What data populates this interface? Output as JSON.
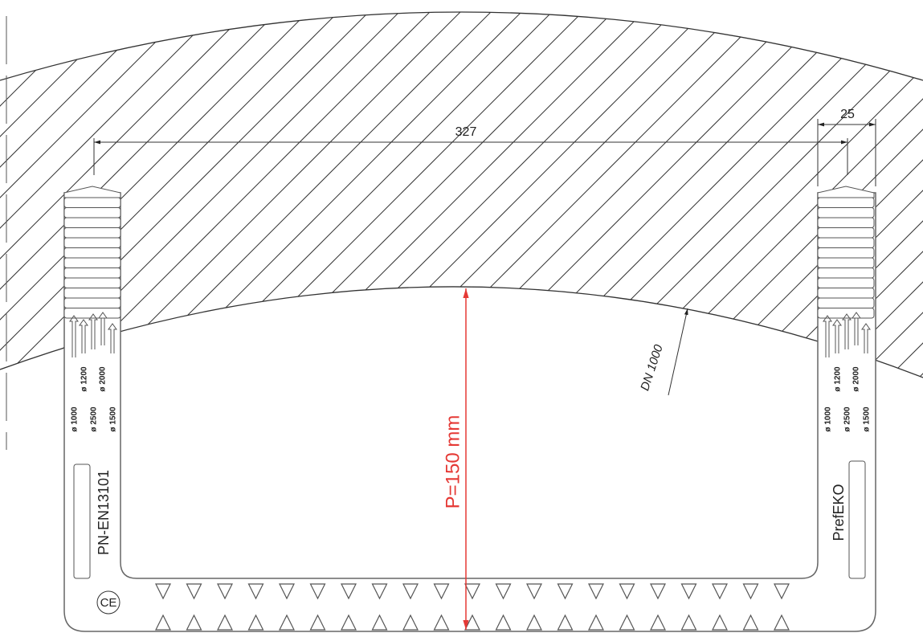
{
  "dimensions": {
    "width": "327",
    "offset": "25",
    "depth": "P=150 mm",
    "pipe": "DN 1000"
  },
  "left_step": {
    "label": "PN-EN13101",
    "mark": "CE",
    "diameters": [
      "ø 1000",
      "ø 1200",
      "ø 2500",
      "ø 2000",
      "ø 1500"
    ]
  },
  "right_step": {
    "label": "PrefEKO",
    "diameters": [
      "ø 1000",
      "ø 1200",
      "ø 2500",
      "ø 2000",
      "ø 1500"
    ]
  }
}
